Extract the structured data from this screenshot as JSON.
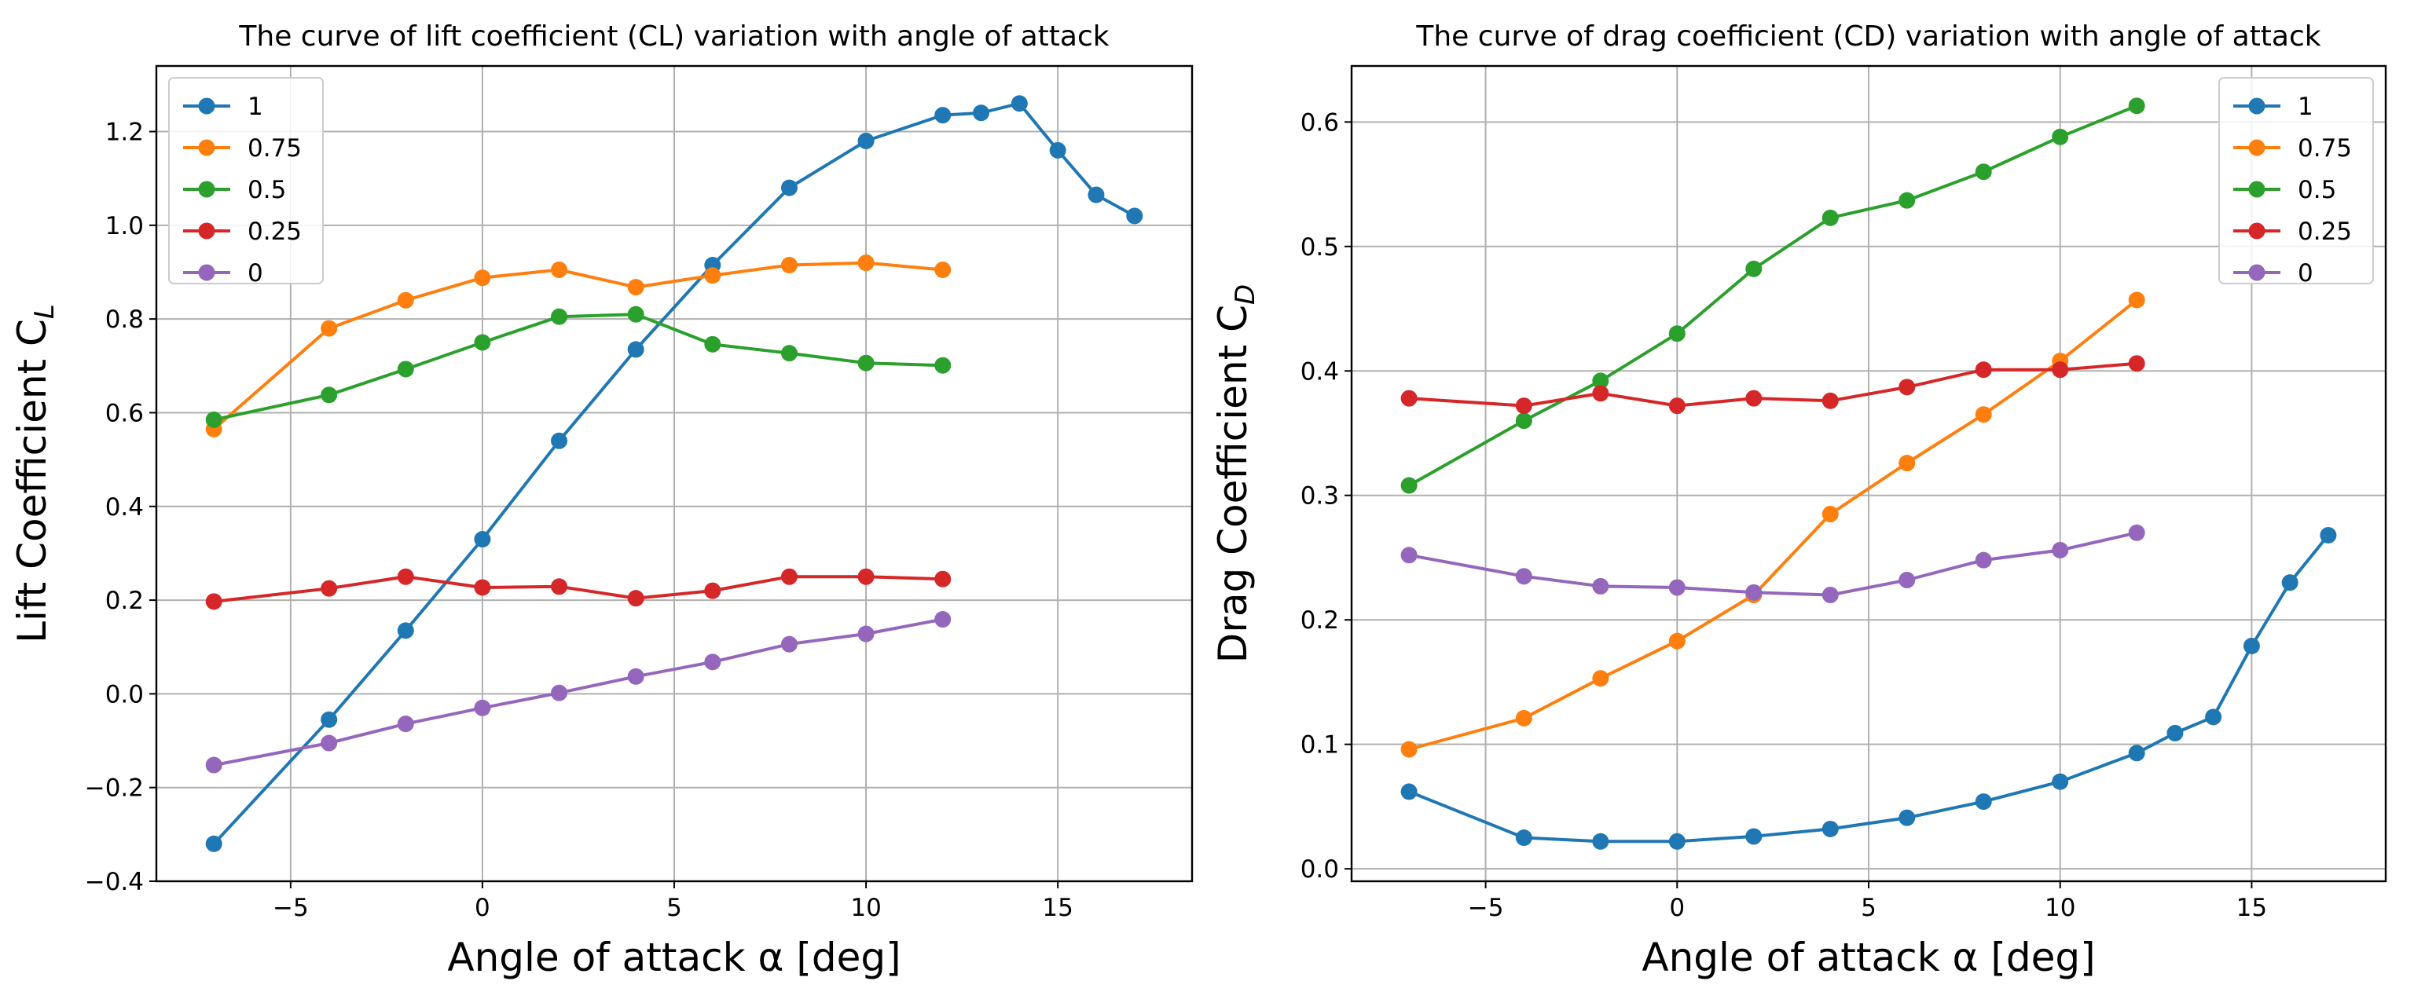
{
  "chart_data": [
    {
      "type": "line",
      "title": "The curve of lift coefficient (CL) variation with angle of attack",
      "xlabel": "Angle of attack α [deg]",
      "ylabel_main": "Lift Coefficient C",
      "ylabel_sub": "L",
      "xlim": [
        -8.5,
        18.5
      ],
      "ylim": [
        -0.4,
        1.34
      ],
      "xticks": [
        -5,
        0,
        5,
        10,
        15
      ],
      "xtick_labels": [
        "−5",
        "0",
        "5",
        "10",
        "15"
      ],
      "yticks": [
        -0.4,
        -0.2,
        0.0,
        0.2,
        0.4,
        0.6,
        0.8,
        1.0,
        1.2
      ],
      "ytick_labels": [
        "−0.4",
        "−0.2",
        "0.0",
        "0.2",
        "0.4",
        "0.6",
        "0.8",
        "1.0",
        "1.2"
      ],
      "grid": true,
      "legend_position": "upper-left",
      "series": [
        {
          "name": "1",
          "color": "#1f77b4",
          "x": [
            -7,
            -4,
            -2,
            0,
            2,
            4,
            6,
            8,
            10,
            12,
            13,
            14,
            15,
            16,
            17
          ],
          "y": [
            -0.32,
            -0.055,
            0.135,
            0.33,
            0.54,
            0.735,
            0.915,
            1.08,
            1.18,
            1.235,
            1.24,
            1.26,
            1.16,
            1.065,
            1.02
          ]
        },
        {
          "name": "0.75",
          "color": "#ff7f0e",
          "x": [
            -7,
            -4,
            -2,
            0,
            2,
            4,
            6,
            8,
            10,
            12
          ],
          "y": [
            0.565,
            0.78,
            0.84,
            0.888,
            0.905,
            0.868,
            0.893,
            0.915,
            0.92,
            0.905
          ]
        },
        {
          "name": "0.5",
          "color": "#2ca02c",
          "x": [
            -7,
            -4,
            -2,
            0,
            2,
            4,
            6,
            8,
            10,
            12
          ],
          "y": [
            0.585,
            0.638,
            0.693,
            0.75,
            0.805,
            0.81,
            0.746,
            0.727,
            0.706,
            0.701
          ]
        },
        {
          "name": "0.25",
          "color": "#d62728",
          "x": [
            -7,
            -4,
            -2,
            0,
            2,
            4,
            6,
            8,
            10,
            12
          ],
          "y": [
            0.197,
            0.225,
            0.25,
            0.227,
            0.229,
            0.204,
            0.22,
            0.25,
            0.25,
            0.245
          ]
        },
        {
          "name": "0",
          "color": "#9467bd",
          "x": [
            -7,
            -4,
            -2,
            0,
            2,
            4,
            6,
            8,
            10,
            12
          ],
          "y": [
            -0.152,
            -0.105,
            -0.064,
            -0.03,
            0.002,
            0.037,
            0.068,
            0.106,
            0.128,
            0.159
          ]
        }
      ]
    },
    {
      "type": "line",
      "title": "The curve of drag coefficient (CD) variation with angle of attack",
      "xlabel": "Angle of attack α [deg]",
      "ylabel_main": "Drag Coefficient C",
      "ylabel_sub": "D",
      "xlim": [
        -8.5,
        18.5
      ],
      "ylim": [
        -0.01,
        0.645
      ],
      "xticks": [
        -5,
        0,
        5,
        10,
        15
      ],
      "xtick_labels": [
        "−5",
        "0",
        "5",
        "10",
        "15"
      ],
      "yticks": [
        0.0,
        0.1,
        0.2,
        0.3,
        0.4,
        0.5,
        0.6
      ],
      "ytick_labels": [
        "0.0",
        "0.1",
        "0.2",
        "0.3",
        "0.4",
        "0.5",
        "0.6"
      ],
      "grid": true,
      "legend_position": "upper-right",
      "series": [
        {
          "name": "1",
          "color": "#1f77b4",
          "x": [
            -7,
            -4,
            -2,
            0,
            2,
            4,
            6,
            8,
            10,
            12,
            13,
            14,
            15,
            16,
            17
          ],
          "y": [
            0.062,
            0.025,
            0.022,
            0.022,
            0.026,
            0.032,
            0.041,
            0.054,
            0.07,
            0.093,
            0.109,
            0.122,
            0.179,
            0.23,
            0.268
          ]
        },
        {
          "name": "0.75",
          "color": "#ff7f0e",
          "x": [
            -7,
            -4,
            -2,
            0,
            2,
            4,
            6,
            8,
            10,
            12
          ],
          "y": [
            0.096,
            0.121,
            0.153,
            0.183,
            0.22,
            0.285,
            0.326,
            0.365,
            0.408,
            0.457
          ]
        },
        {
          "name": "0.5",
          "color": "#2ca02c",
          "x": [
            -7,
            -4,
            -2,
            0,
            2,
            4,
            6,
            8,
            10,
            12
          ],
          "y": [
            0.308,
            0.36,
            0.392,
            0.43,
            0.482,
            0.523,
            0.537,
            0.56,
            0.588,
            0.613
          ]
        },
        {
          "name": "0.25",
          "color": "#d62728",
          "x": [
            -7,
            -4,
            -2,
            0,
            2,
            4,
            6,
            8,
            10,
            12
          ],
          "y": [
            0.378,
            0.372,
            0.382,
            0.372,
            0.378,
            0.376,
            0.387,
            0.401,
            0.401,
            0.406
          ]
        },
        {
          "name": "0",
          "color": "#9467bd",
          "x": [
            -7,
            -4,
            -2,
            0,
            2,
            4,
            6,
            8,
            10,
            12
          ],
          "y": [
            0.252,
            0.235,
            0.227,
            0.226,
            0.222,
            0.22,
            0.232,
            0.248,
            0.256,
            0.27
          ]
        }
      ]
    }
  ]
}
